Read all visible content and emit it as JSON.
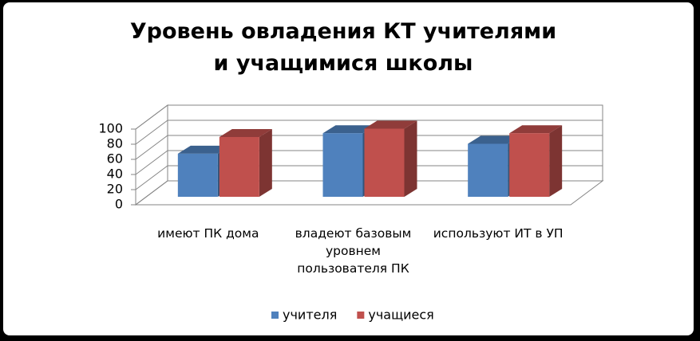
{
  "chart_data": {
    "type": "bar3d",
    "title": "Уровень овладения КТ учителями и учащимися школы",
    "categories": [
      "имеют ПК дома",
      "владеют базовым уровнем пользователя ПК",
      "используют ИТ в УП"
    ],
    "series": [
      {
        "name": "учителя",
        "color": "#4f81bd",
        "values": [
          57,
          84,
          70
        ]
      },
      {
        "name": "учащиеся",
        "color": "#c0504d",
        "values": [
          79,
          90,
          84
        ]
      }
    ],
    "ylim": [
      0,
      100
    ],
    "yticks": [
      0,
      20,
      40,
      60,
      80,
      100
    ],
    "grid": true,
    "legend": "bottom"
  }
}
